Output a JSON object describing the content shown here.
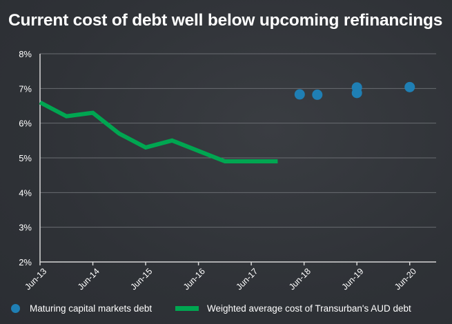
{
  "title": "Current cost of debt well below upcoming refinancings",
  "colors": {
    "background": "#2f3237",
    "gridline": "#6a6d72",
    "axis": "#d8d8d8",
    "line_series": "#00a651",
    "scatter_series": "#1f7fb4"
  },
  "legend": {
    "scatter_label": "Maturing capital markets debt",
    "line_label": "Weighted average cost of Transurban's AUD debt"
  },
  "chart_data": {
    "type": "line",
    "title": "Current cost of debt well below upcoming refinancings",
    "y_unit": "percent",
    "ylim": [
      2,
      8
    ],
    "y_ticks": [
      "2%",
      "3%",
      "4%",
      "5%",
      "6%",
      "7%",
      "8%"
    ],
    "y_tick_values": [
      2,
      3,
      4,
      5,
      6,
      7,
      8
    ],
    "x_ticks": [
      "Jun-13",
      "Jun-14",
      "Jun-15",
      "Jun-16",
      "Jun-17",
      "Jun-18",
      "Jun-19",
      "Jun-20"
    ],
    "x_tick_dates": [
      "2013-06",
      "2014-06",
      "2015-06",
      "2016-06",
      "2017-06",
      "2018-06",
      "2019-06",
      "2020-06"
    ],
    "xlim": [
      "2013-06",
      "2020-12"
    ],
    "grid": "horizontal",
    "legend_position": "bottom",
    "series": [
      {
        "name": "Weighted average cost of Transurban's AUD debt",
        "type": "line",
        "points": [
          {
            "x": "2013-06",
            "y": 6.6
          },
          {
            "x": "2013-12",
            "y": 6.2
          },
          {
            "x": "2014-06",
            "y": 6.3
          },
          {
            "x": "2014-12",
            "y": 5.7
          },
          {
            "x": "2015-06",
            "y": 5.3
          },
          {
            "x": "2015-12",
            "y": 5.5
          },
          {
            "x": "2016-06",
            "y": 5.2
          },
          {
            "x": "2016-12",
            "y": 4.9
          },
          {
            "x": "2017-06",
            "y": 4.9
          },
          {
            "x": "2017-12",
            "y": 4.9
          }
        ]
      },
      {
        "name": "Maturing capital markets debt",
        "type": "scatter",
        "points": [
          {
            "x": "2018-05",
            "y": 6.83
          },
          {
            "x": "2018-09",
            "y": 6.82
          },
          {
            "x": "2019-06",
            "y": 7.03
          },
          {
            "x": "2019-06",
            "y": 6.87
          },
          {
            "x": "2020-06",
            "y": 7.04
          }
        ]
      }
    ]
  }
}
